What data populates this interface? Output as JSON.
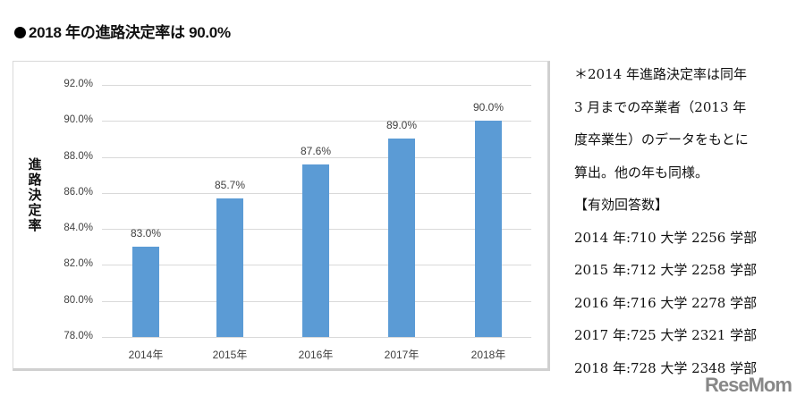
{
  "title": "2018 年の進路決定率は 90.0%",
  "chart_data": {
    "type": "bar",
    "title": "2018 年の進路決定率は 90.0%",
    "xlabel": "",
    "ylabel": "進路決定率",
    "categories": [
      "2014年",
      "2015年",
      "2016年",
      "2017年",
      "2018年"
    ],
    "values": [
      83.0,
      85.7,
      87.6,
      89.0,
      90.0
    ],
    "value_labels": [
      "83.0%",
      "85.7%",
      "87.6%",
      "89.0%",
      "90.0%"
    ],
    "ylim": [
      78.0,
      92.0
    ],
    "yticks": [
      "92.0%",
      "90.0%",
      "88.0%",
      "86.0%",
      "84.0%",
      "82.0%",
      "80.0%",
      "78.0%"
    ],
    "grid": true,
    "legend": "none",
    "bar_color": "#5B9BD5"
  },
  "chart": {
    "ylabel_chars": [
      "進",
      "路",
      "決",
      "定",
      "率"
    ]
  },
  "notes": {
    "lines": [
      "＊2014 年進路決定率は同年",
      "3 月までの卒業者（2013 年",
      "度卒業生）のデータをもとに",
      "算出。他の年も同様。",
      "【有効回答数】",
      "2014 年:710 大学 2256 学部",
      "2015 年:712 大学 2258 学部",
      "2016 年:716 大学 2278 学部",
      "2017 年:725 大学 2321 学部",
      "2018 年:728 大学 2348 学部"
    ]
  },
  "watermark": "ReseMom"
}
